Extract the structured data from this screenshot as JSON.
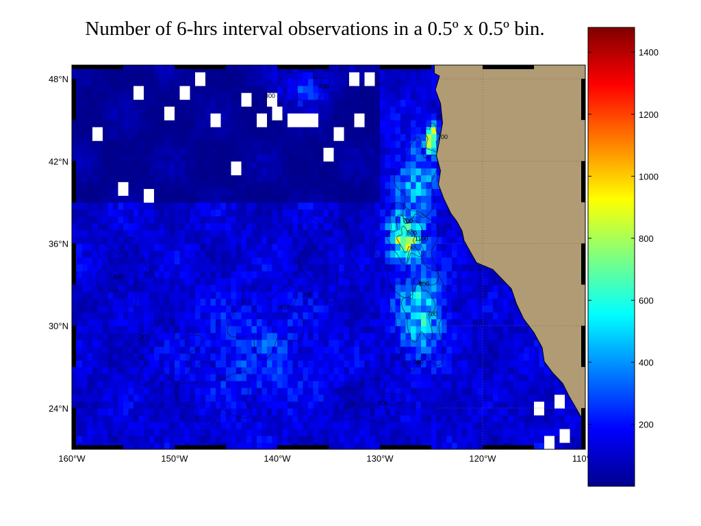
{
  "title": "Number of 6-hrs interval observations in a 0.5º x 0.5º bin.",
  "map": {
    "lon_range": [
      -160,
      -110
    ],
    "lat_range": [
      21,
      49
    ],
    "colormap": "jet",
    "land_color": "#b09b74",
    "ocean_void_color": "#ffffff",
    "grid_dotted": true,
    "x_ticks": [
      {
        "value": -160,
        "label": "160°W"
      },
      {
        "value": -150,
        "label": "150°W"
      },
      {
        "value": -140,
        "label": "140°W"
      },
      {
        "value": -130,
        "label": "130°W"
      },
      {
        "value": -120,
        "label": "120°W"
      },
      {
        "value": -110,
        "label": "110°W"
      }
    ],
    "y_ticks": [
      {
        "value": 48,
        "label": "48°N"
      },
      {
        "value": 42,
        "label": "42°N"
      },
      {
        "value": 36,
        "label": "36°N"
      },
      {
        "value": 30,
        "label": "30°N"
      },
      {
        "value": 24,
        "label": "24°N"
      }
    ],
    "contour_labels": [
      {
        "lon": -127.8,
        "lat": 37.5,
        "text": "700"
      },
      {
        "lon": -127.4,
        "lat": 36.6,
        "text": "800"
      },
      {
        "lon": -126.6,
        "lat": 36.2,
        "text": "1100"
      },
      {
        "lon": -126.2,
        "lat": 32.9,
        "text": "800"
      },
      {
        "lon": -125.4,
        "lat": 30.7,
        "text": "700"
      },
      {
        "lon": -126.8,
        "lat": 27.2,
        "text": "700"
      },
      {
        "lon": -124.4,
        "lat": 43.6,
        "text": "700"
      },
      {
        "lon": -139.8,
        "lat": 31.2,
        "text": "400"
      },
      {
        "lon": -137.6,
        "lat": 32.1,
        "text": "300"
      },
      {
        "lon": -153.4,
        "lat": 29.0,
        "text": "200"
      },
      {
        "lon": -156.0,
        "lat": 33.4,
        "text": "400"
      },
      {
        "lon": -141.2,
        "lat": 46.6,
        "text": "300"
      },
      {
        "lon": -130.2,
        "lat": 24.2,
        "text": "400"
      },
      {
        "lon": -136.0,
        "lat": 47.3,
        "text": "400"
      }
    ]
  },
  "colorbar": {
    "min": 0,
    "max": 1480,
    "ticks": [
      {
        "value": 200,
        "label": "200"
      },
      {
        "value": 400,
        "label": "400"
      },
      {
        "value": 600,
        "label": "600"
      },
      {
        "value": 800,
        "label": "800"
      },
      {
        "value": 1000,
        "label": "1000"
      },
      {
        "value": 1200,
        "label": "1200"
      },
      {
        "value": 1400,
        "label": "1400"
      }
    ]
  }
}
